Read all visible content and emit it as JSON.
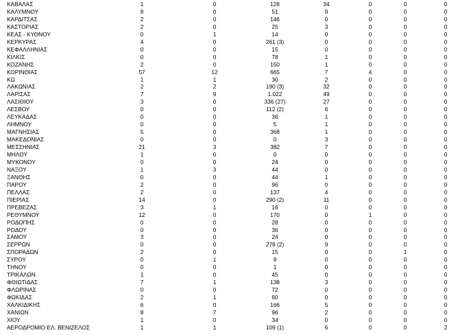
{
  "table": {
    "rows": [
      [
        "ΚΑΒΑΛΑΣ",
        "1",
        "0",
        "128",
        "34",
        "0",
        "0",
        "0"
      ],
      [
        "ΚΑΛΥΜΝΟΥ",
        "8",
        "0",
        "51",
        "9",
        "0",
        "0",
        "0"
      ],
      [
        "ΚΑΡΔΙΤΣΑΣ",
        "2",
        "0",
        "146",
        "0",
        "0",
        "0",
        "0"
      ],
      [
        "ΚΑΣΤΟΡΙΑΣ",
        "2",
        "0",
        "25",
        "3",
        "0",
        "0",
        "0"
      ],
      [
        "ΚΕΑΣ - ΚΥΘΝΟΥ",
        "0",
        "1",
        "14",
        "0",
        "0",
        "0",
        "0"
      ],
      [
        "ΚΕΡΚΥΡΑΣ",
        "4",
        "0",
        "261 (3)",
        "0",
        "0",
        "0",
        "0"
      ],
      [
        "ΚΕΦΑΛΛΗΝΙΑΣ",
        "0",
        "0",
        "15",
        "0",
        "0",
        "0",
        "0"
      ],
      [
        "ΚΙΛΚΙΣ",
        "0",
        "0",
        "78",
        "1",
        "0",
        "0",
        "0"
      ],
      [
        "ΚΟΖΑΝΗΣ",
        "2",
        "0",
        "150",
        "1",
        "0",
        "0",
        "0"
      ],
      [
        "ΚΟΡΙΝΘΙΑΣ",
        "57",
        "12",
        "665",
        "7",
        "4",
        "0",
        "0"
      ],
      [
        "ΚΩ",
        "1",
        "1",
        "30",
        "2",
        "0",
        "0",
        "0"
      ],
      [
        "ΛΑΚΩΝΙΑΣ",
        "2",
        "2",
        "190 (3)",
        "32",
        "0",
        "0",
        "0"
      ],
      [
        "ΛΑΡΙΣΑΣ",
        "7",
        "9",
        "1.022",
        "49",
        "0",
        "0",
        "0"
      ],
      [
        "ΛΑΣΙΘΙΟΥ",
        "3",
        "0",
        "336 (27)",
        "27",
        "0",
        "0",
        "0"
      ],
      [
        "ΛΕΣΒΟΥ",
        "0",
        "0",
        "112 (2)",
        "6",
        "0",
        "0",
        "0"
      ],
      [
        "ΛΕΥΚΑΔΑΣ",
        "0",
        "0",
        "36",
        "1",
        "0",
        "0",
        "0"
      ],
      [
        "ΛΗΜΝΟΥ",
        "0",
        "0",
        "5",
        "1",
        "0",
        "0",
        "0"
      ],
      [
        "ΜΑΓΝΗΣΙΑΣ",
        "5",
        "0",
        "368",
        "1",
        "0",
        "0",
        "0"
      ],
      [
        "ΜΑΚΕΔΟΝΙΑΣ",
        "0",
        "0",
        "0",
        "3",
        "0",
        "0",
        "0"
      ],
      [
        "ΜΕΣΣΗΝΙΑΣ",
        "21",
        "3",
        "382",
        "7",
        "0",
        "0",
        "0"
      ],
      [
        "ΜΗΛΟΥ",
        "1",
        "0",
        "0",
        "0",
        "0",
        "0",
        "0"
      ],
      [
        "ΜΥΚΟΝΟΥ",
        "0",
        "0",
        "24",
        "0",
        "0",
        "0",
        "0"
      ],
      [
        "ΝΑΞΟΥ",
        "1",
        "3",
        "44",
        "0",
        "0",
        "0",
        "0"
      ],
      [
        "ΞΑΝΘΗΣ",
        "0",
        "0",
        "44",
        "1",
        "0",
        "0",
        "0"
      ],
      [
        "ΠΑΡΟΥ",
        "2",
        "0",
        "96",
        "0",
        "0",
        "0",
        "0"
      ],
      [
        "ΠΕΛΛΑΣ",
        "2",
        "0",
        "137",
        "4",
        "0",
        "0",
        "0"
      ],
      [
        "ΠΙΕΡΙΑΣ",
        "14",
        "0",
        "290 (2)",
        "11",
        "0",
        "0",
        "0"
      ],
      [
        "ΠΡΕΒΕΖΑΣ",
        "3",
        "1",
        "16",
        "0",
        "0",
        "0",
        "0"
      ],
      [
        "ΡΕΘΥΜΝΟΥ",
        "12",
        "0",
        "170",
        "0",
        "1",
        "0",
        "0"
      ],
      [
        "ΡΟΔΟΠΗΣ",
        "0",
        "0",
        "28",
        "0",
        "0",
        "0",
        "0"
      ],
      [
        "ΡΟΔΟΥ",
        "0",
        "0",
        "36",
        "0",
        "0",
        "0",
        "0"
      ],
      [
        "ΣΑΜΟΥ",
        "3",
        "0",
        "24",
        "0",
        "0",
        "0",
        "0"
      ],
      [
        "ΣΕΡΡΩΝ",
        "0",
        "0",
        "278 (2)",
        "9",
        "0",
        "0",
        "0"
      ],
      [
        "ΣΠΟΡΑΔΩΝ",
        "2",
        "0",
        "15",
        "0",
        "0",
        "1",
        "0"
      ],
      [
        "ΣΥΡΟΥ",
        "0",
        "1",
        "9",
        "0",
        "0",
        "0",
        "0"
      ],
      [
        "ΤΗΝΟΥ",
        "0",
        "0",
        "1",
        "0",
        "0",
        "0",
        "0"
      ],
      [
        "ΤΡΙΚΑΛΩΝ",
        "1",
        "0",
        "45",
        "0",
        "0",
        "0",
        "0"
      ],
      [
        "ΦΘΙΩΤΙΔΑΣ",
        "7",
        "1",
        "138",
        "3",
        "0",
        "0",
        "0"
      ],
      [
        "ΦΛΩΡΙΝΑΣ",
        "0",
        "0",
        "72",
        "0",
        "0",
        "0",
        "0"
      ],
      [
        "ΦΩΚΙΔΑΣ",
        "2",
        "1",
        "60",
        "0",
        "0",
        "0",
        "0"
      ],
      [
        "ΧΑΛΚΙΔΙΚΗΣ",
        "6",
        "0",
        "166",
        "5",
        "0",
        "0",
        "0"
      ],
      [
        "ΧΑΝΙΩΝ",
        "8",
        "7",
        "96",
        "2",
        "0",
        "0",
        "0"
      ],
      [
        "ΧΙΟΥ",
        "1",
        "0",
        "34",
        "0",
        "0",
        "0",
        "0"
      ],
      [
        "ΑΕΡΟΔΡΟΜΙΟ ΕΛ. ΒΕΝΙΖΕΛΟΣ",
        "1",
        "1",
        "109 (1)",
        "6",
        "0",
        "0",
        "2"
      ]
    ]
  }
}
